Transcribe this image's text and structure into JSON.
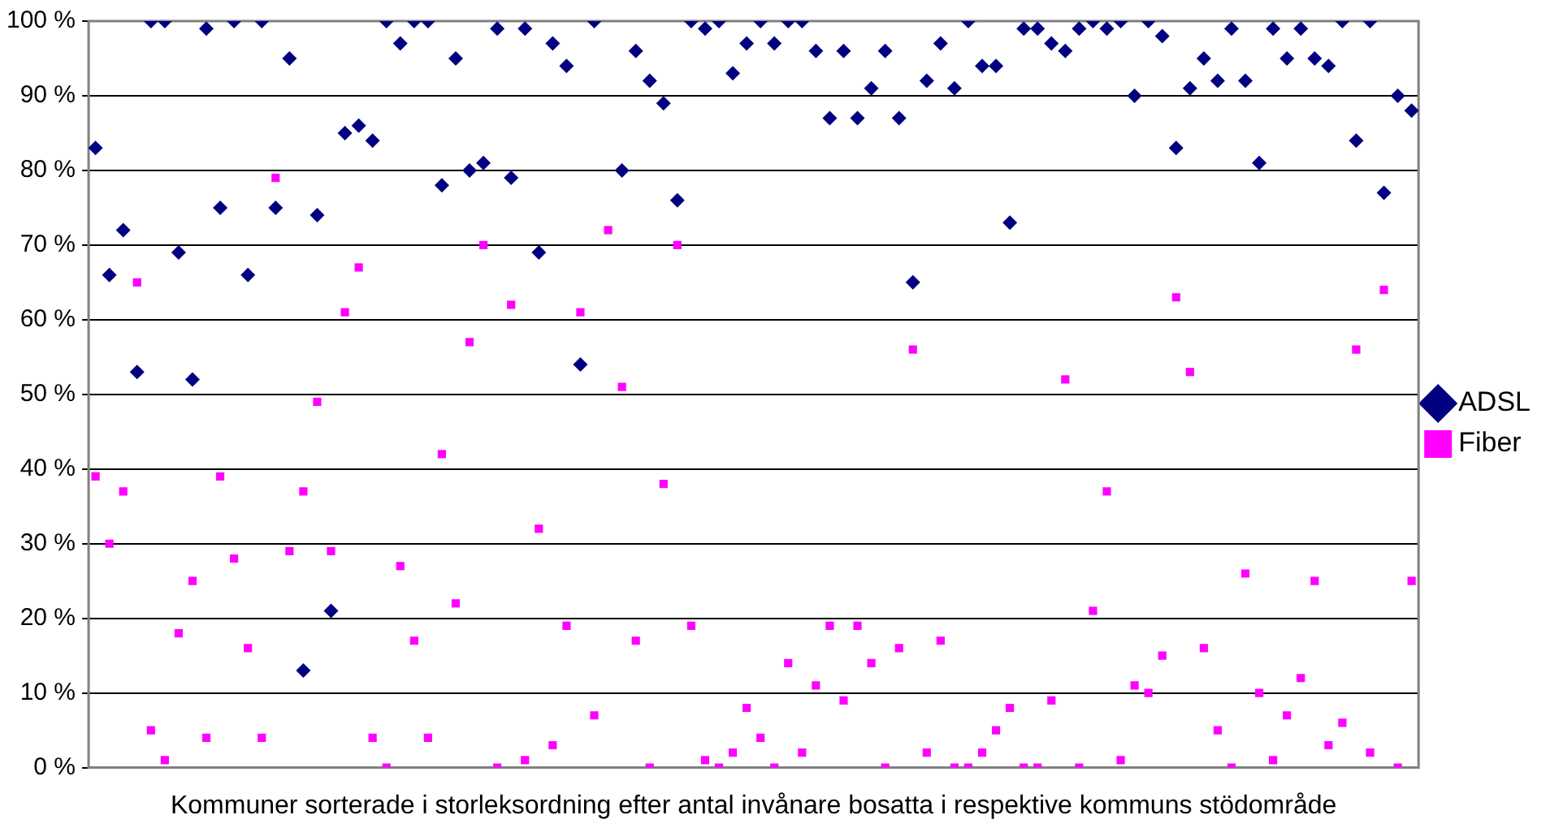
{
  "chart_data": {
    "type": "scatter",
    "xlabel": "Kommuner sorterade i storleksordning efter antal invånare bosatta i respektive kommuns stödområde",
    "categories": [
      null,
      null,
      null,
      null,
      null,
      null,
      null,
      null,
      null,
      null,
      null,
      null,
      null,
      null,
      null,
      null,
      null,
      null,
      null,
      null,
      null,
      null,
      null,
      null,
      null,
      null,
      null,
      null,
      null,
      null,
      null,
      null,
      null,
      null,
      null,
      null,
      null,
      null,
      null,
      null,
      null,
      null,
      null,
      null,
      null,
      null,
      null,
      null,
      null,
      null,
      null,
      null,
      null,
      null,
      null,
      null,
      null,
      null,
      null,
      null,
      null,
      null,
      null,
      null,
      null,
      null,
      null,
      null,
      null,
      null,
      null,
      null,
      null,
      null,
      null,
      null,
      null,
      null,
      null,
      null,
      null,
      null,
      null,
      null,
      null,
      null,
      null,
      null,
      null,
      null,
      null,
      null,
      null,
      null,
      null,
      null
    ],
    "series": [
      {
        "name": "ADSL",
        "color": "#000080",
        "marker": "diamond",
        "values": [
          83,
          66,
          72,
          53,
          100,
          100,
          69,
          52,
          99,
          75,
          100,
          66,
          100,
          75,
          95,
          13,
          74,
          21,
          85,
          86,
          84,
          100,
          97,
          100,
          100,
          78,
          95,
          80,
          81,
          99,
          79,
          99,
          69,
          97,
          94,
          54,
          100,
          null,
          80,
          96,
          92,
          89,
          76,
          100,
          99,
          100,
          93,
          97,
          100,
          97,
          100,
          100,
          96,
          87,
          96,
          87,
          91,
          96,
          87,
          65,
          92,
          97,
          91,
          100,
          94,
          94,
          73,
          99,
          99,
          97,
          96,
          99,
          100,
          99,
          100,
          90,
          100,
          98,
          83,
          91,
          95,
          92,
          99,
          92,
          81,
          99,
          95,
          99,
          95,
          94,
          100,
          84,
          100,
          77,
          90,
          88
        ]
      },
      {
        "name": "Fiber",
        "color": "#ff00ff",
        "marker": "square",
        "values": [
          39,
          30,
          37,
          65,
          5,
          1,
          18,
          25,
          4,
          39,
          28,
          16,
          4,
          79,
          29,
          37,
          49,
          29,
          61,
          67,
          4,
          0,
          27,
          17,
          4,
          42,
          22,
          57,
          70,
          0,
          62,
          1,
          32,
          3,
          19,
          61,
          7,
          72,
          51,
          17,
          0,
          38,
          70,
          19,
          1,
          0,
          2,
          8,
          4,
          0,
          14,
          2,
          11,
          19,
          9,
          19,
          14,
          0,
          16,
          56,
          2,
          17,
          0,
          0,
          2,
          5,
          8,
          0,
          0,
          9,
          52,
          0,
          21,
          37,
          1,
          11,
          10,
          15,
          63,
          53,
          16,
          5,
          0,
          26,
          10,
          1,
          7,
          12,
          25,
          3,
          6,
          56,
          2,
          64,
          0,
          25
        ]
      }
    ],
    "ylim": [
      0,
      100
    ],
    "yticks": [
      {
        "value": 0,
        "label": "0 %"
      },
      {
        "value": 10,
        "label": "10 %"
      },
      {
        "value": 20,
        "label": "20 %"
      },
      {
        "value": 30,
        "label": "30 %"
      },
      {
        "value": 40,
        "label": "40 %"
      },
      {
        "value": 50,
        "label": "50 %"
      },
      {
        "value": 60,
        "label": "60 %"
      },
      {
        "value": 70,
        "label": "70 %"
      },
      {
        "value": 80,
        "label": "80 %"
      },
      {
        "value": 90,
        "label": "90 %"
      },
      {
        "value": 100,
        "label": "100 %"
      }
    ],
    "grid": "y",
    "legend": "right"
  }
}
